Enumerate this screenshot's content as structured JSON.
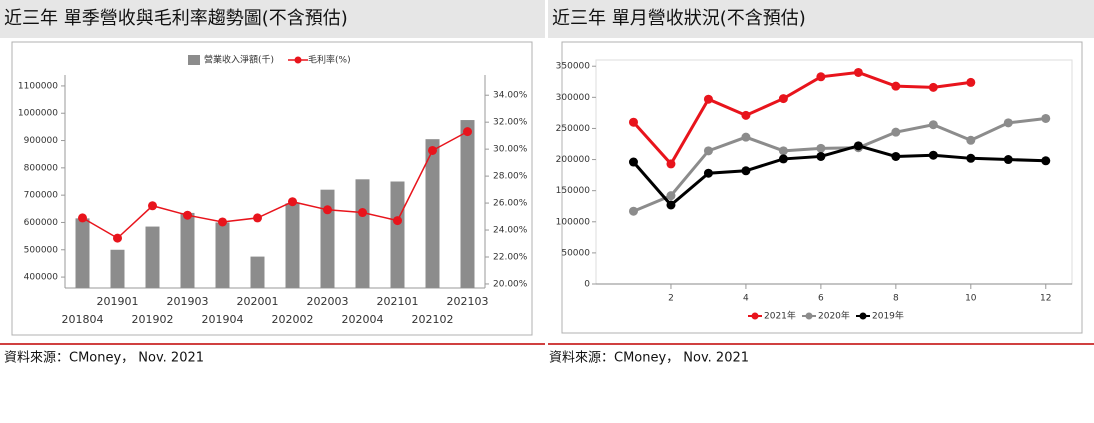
{
  "chart_data": [
    {
      "type": "bar_line",
      "title": "近三年  單季營收與毛利率趨勢圖(不含預估)",
      "source": "資料來源：CMoney，  Nov. 2021",
      "categories": [
        "201804",
        "201901",
        "201902",
        "201903",
        "201904",
        "202001",
        "202002",
        "202003",
        "202004",
        "202101",
        "202102",
        "202103"
      ],
      "series": [
        {
          "name": "營業收入淨額(千)",
          "color": "#8c8c8c",
          "kind": "bar",
          "values": [
            615000,
            500000,
            585000,
            635000,
            600000,
            475000,
            670000,
            720000,
            758000,
            750000,
            905000,
            975000
          ]
        },
        {
          "name": "毛利率(%)",
          "color": "#e8141c",
          "kind": "line",
          "axis": "y2",
          "values": [
            24.9,
            23.4,
            25.8,
            25.1,
            24.6,
            24.9,
            26.1,
            25.5,
            25.3,
            24.7,
            29.9,
            31.3
          ]
        }
      ],
      "ylim": [
        360000,
        1140000
      ],
      "yticks": [
        400000,
        500000,
        600000,
        700000,
        800000,
        900000,
        1000000,
        1100000
      ],
      "y2lim": [
        19.7,
        35.5
      ],
      "y2ticks": [
        {
          "value": 20,
          "label": "20.00%"
        },
        {
          "value": 22,
          "label": "22.00%"
        },
        {
          "value": 24,
          "label": "24.00%"
        },
        {
          "value": 26,
          "label": "26.00%"
        },
        {
          "value": 28,
          "label": "28.00%"
        },
        {
          "value": 30,
          "label": "30.00%"
        },
        {
          "value": 32,
          "label": "32.00%"
        },
        {
          "value": 34,
          "label": "34.00%"
        }
      ],
      "legend": "top"
    },
    {
      "type": "line",
      "title": "近三年  單月營收狀況(不含預估)",
      "source": "資料來源：CMoney，  Nov. 2021",
      "x": [
        1,
        2,
        3,
        4,
        5,
        6,
        7,
        8,
        9,
        10,
        11,
        12
      ],
      "series": [
        {
          "name": "2021年",
          "color": "#e8141c",
          "values": [
            260000,
            193000,
            297000,
            271000,
            298000,
            333000,
            340000,
            318000,
            316000,
            324000,
            null,
            null
          ]
        },
        {
          "name": "2020年",
          "color": "#8c8c8c",
          "values": [
            117000,
            142000,
            214000,
            236000,
            214000,
            218000,
            219000,
            244000,
            256000,
            231000,
            259000,
            266000
          ]
        },
        {
          "name": "2019年",
          "color": "#000000",
          "values": [
            196000,
            127000,
            178000,
            182000,
            201000,
            205000,
            222000,
            205000,
            207000,
            202000,
            200000,
            198000
          ]
        }
      ],
      "xlim": [
        0,
        12.7
      ],
      "xticks": [
        2,
        4,
        6,
        8,
        10,
        12
      ],
      "ylim": [
        0,
        360000
      ],
      "yticks": [
        0,
        50000,
        100000,
        150000,
        200000,
        250000,
        300000,
        350000
      ],
      "legend": "bottom"
    }
  ]
}
